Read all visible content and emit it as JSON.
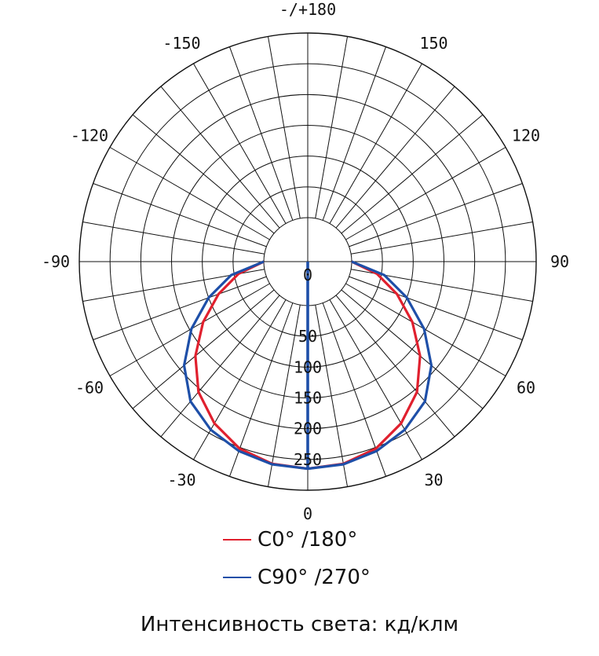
{
  "chart_data": {
    "type": "polar",
    "angle_labels": [
      {
        "angle": 180,
        "text": "-/+180"
      },
      {
        "angle": 150,
        "text": "150"
      },
      {
        "angle": -150,
        "text": "-150"
      },
      {
        "angle": 120,
        "text": "120"
      },
      {
        "angle": -120,
        "text": "-120"
      },
      {
        "angle": 90,
        "text": "90"
      },
      {
        "angle": -90,
        "text": "-90"
      },
      {
        "angle": 60,
        "text": "60"
      },
      {
        "angle": -60,
        "text": "-60"
      },
      {
        "angle": 30,
        "text": "30"
      },
      {
        "angle": -30,
        "text": "-30"
      },
      {
        "angle": 0,
        "text": "0"
      }
    ],
    "radial_ticks": [
      0,
      50,
      100,
      150,
      200,
      250
    ],
    "radial_labels": [
      "0",
      "50",
      "100",
      "150",
      "200",
      "250"
    ],
    "rmax": 300,
    "angle_step": 10,
    "series": [
      {
        "name": "C0°  /180°",
        "color": "#e0202e",
        "angles": [
          -90,
          -80,
          -70,
          -60,
          -50,
          -40,
          -30,
          -20,
          -10,
          0,
          10,
          20,
          30,
          40,
          50,
          60,
          70,
          80,
          90
        ],
        "values": [
          0,
          43,
          83,
          125,
          167,
          205,
          232,
          252,
          262,
          265,
          262,
          252,
          232,
          205,
          167,
          125,
          83,
          43,
          0
        ]
      },
      {
        "name": "C90°  /270°",
        "color": "#1e4fa8",
        "angles": [
          -90,
          -80,
          -70,
          -60,
          -50,
          -40,
          -30,
          -20,
          -10,
          0,
          10,
          20,
          30,
          40,
          50,
          60,
          70,
          80,
          90
        ],
        "values": [
          0,
          55,
          100,
          147,
          191,
          225,
          244,
          256,
          263,
          265,
          263,
          256,
          244,
          225,
          191,
          147,
          100,
          55,
          0
        ]
      }
    ],
    "vertical_line": {
      "color": "#1e4fa8",
      "from": 0,
      "to": 265
    }
  },
  "caption": "Интенсивность света: кд/клм"
}
